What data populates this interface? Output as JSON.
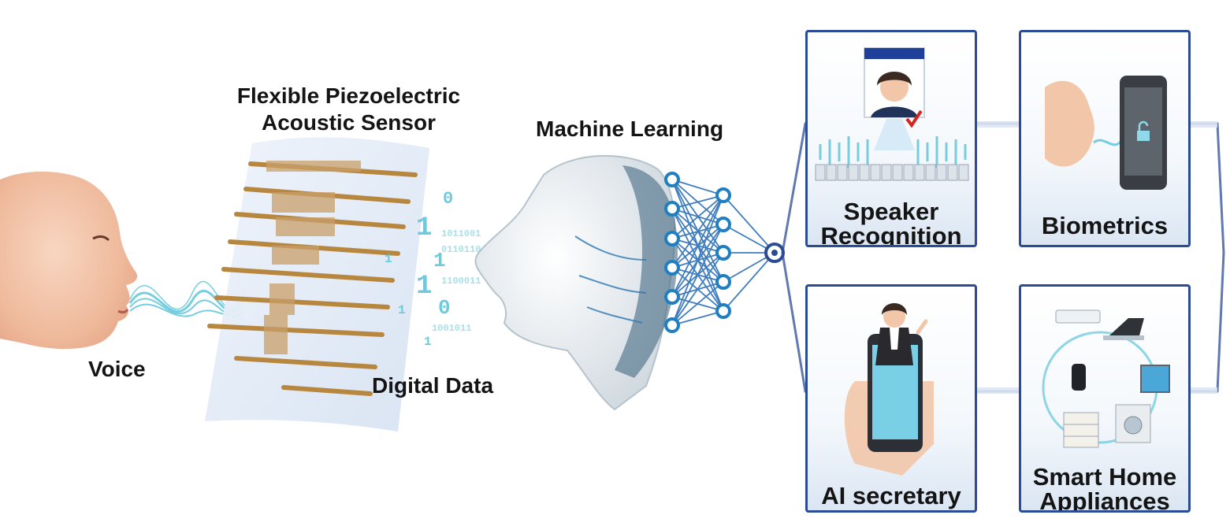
{
  "pipeline": {
    "voice_label": "Voice",
    "sensor_title_line1": "Flexible Piezoelectric",
    "sensor_title_line2": "Acoustic Sensor",
    "digital_label": "Digital Data",
    "ml_label": "Machine Learning"
  },
  "applications": [
    {
      "label_line1": "Speaker",
      "label_line2": "Recognition"
    },
    {
      "label_line1": "Biometrics",
      "label_line2": ""
    },
    {
      "label_line1": "AI secretary",
      "label_line2": ""
    },
    {
      "label_line1": "Smart Home",
      "label_line2": "Appliances"
    }
  ],
  "colors": {
    "card_border": "#2c4b95",
    "connector": "#2c4b95",
    "wave": "#5fc6da",
    "sensor_electrode": "#b8873f",
    "network_node": "#1f7fc1",
    "skin": "#f3c3a6"
  },
  "icons": {
    "face": "human-face-profile-icon",
    "sensor": "piezoelectric-sensor-icon",
    "data": "binary-data-icon",
    "head": "robot-head-icon",
    "network": "neural-network-icon"
  }
}
